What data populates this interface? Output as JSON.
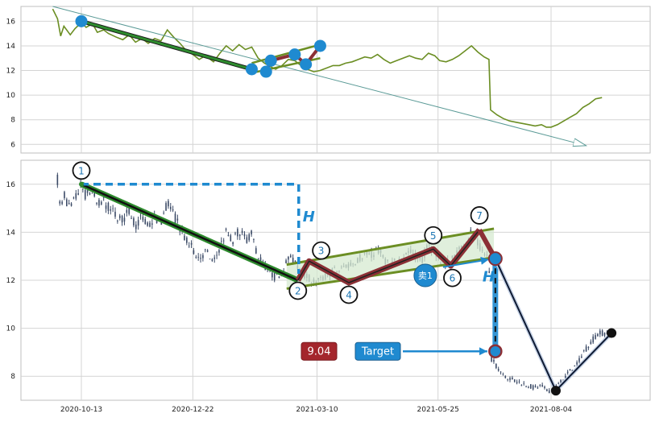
{
  "chart_data": [
    {
      "type": "line",
      "panel": "overview",
      "title": "",
      "ylim": [
        5.3,
        17.2
      ],
      "y_ticks": [
        6,
        8,
        10,
        12,
        14,
        16
      ],
      "grid": true,
      "series": [
        {
          "color": "#6b8e23",
          "points": [
            [
              "2020-09-25",
              17.0
            ],
            [
              "2020-09-28",
              16.2
            ],
            [
              "2020-09-30",
              14.8
            ],
            [
              "2020-10-02",
              15.6
            ],
            [
              "2020-10-06",
              14.9
            ],
            [
              "2020-10-09",
              15.4
            ],
            [
              "2020-10-13",
              15.9
            ],
            [
              "2020-10-16",
              15.5
            ],
            [
              "2020-10-20",
              15.8
            ],
            [
              "2020-10-23",
              15.1
            ],
            [
              "2020-10-27",
              15.3
            ],
            [
              "2020-10-30",
              15.0
            ],
            [
              "2020-11-04",
              14.7
            ],
            [
              "2020-11-08",
              14.5
            ],
            [
              "2020-11-12",
              14.9
            ],
            [
              "2020-11-16",
              14.3
            ],
            [
              "2020-11-20",
              14.6
            ],
            [
              "2020-11-24",
              14.2
            ],
            [
              "2020-11-28",
              14.6
            ],
            [
              "2020-12-02",
              14.4
            ],
            [
              "2020-12-06",
              15.3
            ],
            [
              "2020-12-10",
              14.7
            ],
            [
              "2020-12-14",
              14.2
            ],
            [
              "2020-12-18",
              13.6
            ],
            [
              "2020-12-22",
              13.3
            ],
            [
              "2020-12-26",
              12.9
            ],
            [
              "2020-12-30",
              13.2
            ],
            [
              "2021-01-04",
              12.7
            ],
            [
              "2021-01-08",
              13.4
            ],
            [
              "2021-01-12",
              14.0
            ],
            [
              "2021-01-16",
              13.6
            ],
            [
              "2021-01-20",
              14.1
            ],
            [
              "2021-01-24",
              13.7
            ],
            [
              "2021-01-28",
              13.9
            ],
            [
              "2021-02-01",
              13.0
            ],
            [
              "2021-02-05",
              12.6
            ],
            [
              "2021-02-09",
              12.3
            ],
            [
              "2021-02-12",
              12.1
            ],
            [
              "2021-02-16",
              12.4
            ],
            [
              "2021-02-20",
              12.9
            ],
            [
              "2021-02-24",
              12.8
            ],
            [
              "2021-02-28",
              12.4
            ],
            [
              "2021-03-04",
              12.1
            ],
            [
              "2021-03-08",
              11.9
            ],
            [
              "2021-03-12",
              12.0
            ],
            [
              "2021-03-16",
              12.2
            ],
            [
              "2021-03-20",
              12.4
            ],
            [
              "2021-03-24",
              12.4
            ],
            [
              "2021-03-28",
              12.6
            ],
            [
              "2021-04-01",
              12.7
            ],
            [
              "2021-04-05",
              12.9
            ],
            [
              "2021-04-09",
              13.1
            ],
            [
              "2021-04-13",
              13.0
            ],
            [
              "2021-04-17",
              13.3
            ],
            [
              "2021-04-21",
              12.9
            ],
            [
              "2021-04-25",
              12.6
            ],
            [
              "2021-04-29",
              12.8
            ],
            [
              "2021-05-03",
              13.0
            ],
            [
              "2021-05-07",
              13.2
            ],
            [
              "2021-05-11",
              13.0
            ],
            [
              "2021-05-15",
              12.9
            ],
            [
              "2021-05-19",
              13.4
            ],
            [
              "2021-05-23",
              13.2
            ],
            [
              "2021-05-26",
              12.8
            ],
            [
              "2021-05-30",
              12.7
            ],
            [
              "2021-06-03",
              12.9
            ],
            [
              "2021-06-07",
              13.2
            ],
            [
              "2021-06-11",
              13.6
            ],
            [
              "2021-06-15",
              14.0
            ],
            [
              "2021-06-19",
              13.5
            ],
            [
              "2021-06-23",
              13.1
            ],
            [
              "2021-06-26",
              12.9
            ],
            [
              "2021-06-27",
              8.8
            ],
            [
              "2021-07-01",
              8.4
            ],
            [
              "2021-07-05",
              8.1
            ],
            [
              "2021-07-09",
              7.9
            ],
            [
              "2021-07-13",
              7.8
            ],
            [
              "2021-07-17",
              7.7
            ],
            [
              "2021-07-21",
              7.6
            ],
            [
              "2021-07-25",
              7.5
            ],
            [
              "2021-07-29",
              7.6
            ],
            [
              "2021-08-01",
              7.4
            ],
            [
              "2021-08-04",
              7.4
            ],
            [
              "2021-08-08",
              7.6
            ],
            [
              "2021-08-12",
              7.9
            ],
            [
              "2021-08-16",
              8.2
            ],
            [
              "2021-08-20",
              8.5
            ],
            [
              "2021-08-24",
              9.0
            ],
            [
              "2021-08-28",
              9.3
            ],
            [
              "2021-09-01",
              9.7
            ],
            [
              "2021-09-05",
              9.8
            ]
          ]
        }
      ],
      "annotations": {
        "trend_arrow": {
          "from": [
            "2020-09-25",
            17.2
          ],
          "to": [
            "2021-08-26",
            5.9
          ]
        },
        "wave_points": [
          [
            "2020-10-13",
            16.0
          ],
          [
            "2021-01-28",
            12.1
          ],
          [
            "2021-02-06",
            11.9
          ],
          [
            "2021-02-09",
            12.8
          ],
          [
            "2021-02-24",
            13.3
          ],
          [
            "2021-03-03",
            12.5
          ],
          [
            "2021-03-12",
            14.0
          ]
        ]
      }
    },
    {
      "type": "candlestick",
      "panel": "detail",
      "title": "",
      "ylim": [
        7.0,
        17.0
      ],
      "y_ticks": [
        8,
        10,
        12,
        14,
        16
      ],
      "x_ticks": [
        "2020-10-13",
        "2020-12-22",
        "2021-03-10",
        "2021-05-25",
        "2021-08-04"
      ],
      "grid": true,
      "candle_color": "#3b4a66",
      "wave_points": [
        {
          "label": "1",
          "date": "2020-10-13",
          "price": 16.0
        },
        {
          "label": "2",
          "date": "2021-02-26",
          "price": 12.0
        },
        {
          "label": "3",
          "date": "2021-03-05",
          "price": 12.8
        },
        {
          "label": "4",
          "date": "2021-03-30",
          "price": 11.9
        },
        {
          "label": "5",
          "date": "2021-05-22",
          "price": 13.3
        },
        {
          "label": "6",
          "date": "2021-06-02",
          "price": 12.6
        },
        {
          "label": "7",
          "date": "2021-06-20",
          "price": 14.1
        }
      ],
      "breakout_point": {
        "date": "2021-06-30",
        "price": 12.9
      },
      "target_point": {
        "date": "2021-06-30",
        "price": 9.04
      },
      "low_point": {
        "date": "2021-08-07",
        "price": 7.4
      },
      "end_point": {
        "date": "2021-09-11",
        "price": 9.8
      },
      "sell_marker": {
        "date": "2021-05-17",
        "price": 12.2,
        "text": "卖1"
      },
      "height_label": "H",
      "target_value_label": "9.04",
      "target_label": "Target",
      "colors": {
        "pole": "#2e8b2e",
        "flag_channel": "#6b8e23",
        "flag_fill": "#d6ead0",
        "wave_path": "#8b2f35",
        "measure": "#1f8ad0",
        "price_box": "#a4262c",
        "target_box": "#1f8ad0"
      }
    }
  ]
}
